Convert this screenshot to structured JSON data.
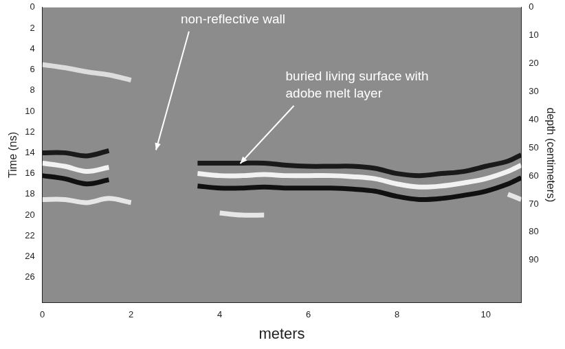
{
  "chart_data": {
    "type": "line",
    "x_label": "meters",
    "y_label": "Time (ns)",
    "y2_label": "depth (centimeters)",
    "x": [
      0,
      0.5,
      1,
      1.5,
      2,
      2.5,
      3,
      3.5,
      4,
      4.5,
      5,
      5.5,
      6,
      6.5,
      7,
      7.5,
      8,
      8.5,
      9,
      9.5,
      10,
      10.5,
      10.8
    ],
    "series": [
      {
        "color": "#f2f2f2",
        "values": [
          15.0,
          15.3,
          15.8,
          15.4,
          null,
          null,
          null,
          16.0,
          16.2,
          16.2,
          16.1,
          16.2,
          16.2,
          16.2,
          16.3,
          16.5,
          17.0,
          17.3,
          17.2,
          16.9,
          16.5,
          15.8,
          15.2
        ]
      },
      {
        "color": "#111111",
        "values": [
          16.2,
          16.5,
          17.0,
          16.6,
          null,
          null,
          null,
          17.2,
          17.4,
          17.4,
          17.3,
          17.4,
          17.4,
          17.4,
          17.5,
          17.7,
          18.2,
          18.5,
          18.4,
          18.1,
          17.7,
          17.0,
          16.4
        ]
      },
      {
        "color": "#1a1a1a",
        "values": [
          14.0,
          14.0,
          14.3,
          13.8,
          null,
          null,
          null,
          15.0,
          15.0,
          15.0,
          15.0,
          15.2,
          15.3,
          15.3,
          15.3,
          15.5,
          16.0,
          16.2,
          16.0,
          15.8,
          15.3,
          14.8,
          14.2
        ]
      },
      {
        "color": "#e6e6e6",
        "values": [
          18.5,
          18.5,
          18.8,
          18.4,
          18.8,
          null,
          null,
          null,
          19.8,
          20.0,
          20.0,
          null,
          null,
          null,
          null,
          null,
          null,
          null,
          null,
          null,
          null,
          18.0,
          18.5
        ]
      },
      {
        "color": "#dddddd",
        "values": [
          5.5,
          5.8,
          6.2,
          6.5,
          7.0,
          null,
          null,
          null,
          null,
          null,
          null,
          null,
          null,
          null,
          null,
          null,
          null,
          null,
          null,
          null,
          null,
          null,
          null
        ]
      }
    ],
    "xlim": [
      0,
      10.8
    ],
    "xticks": [
      0,
      2,
      4,
      6,
      8,
      10
    ],
    "ylim": [
      0,
      28.4
    ],
    "yticks": [
      0,
      2,
      4,
      6,
      8,
      10,
      12,
      14,
      16,
      18,
      20,
      22,
      24,
      26
    ],
    "y2lim": [
      0,
      105
    ],
    "y2ticks": [
      0,
      10,
      20,
      30,
      40,
      50,
      60,
      70,
      80,
      90
    ],
    "grid": false,
    "annotations": [
      {
        "text": "non-reflective wall",
        "x": 2.5,
        "y": 14.0
      },
      {
        "text": "buried living surface with adobe melt layer",
        "x": 4.4,
        "y": 15.3
      }
    ]
  }
}
